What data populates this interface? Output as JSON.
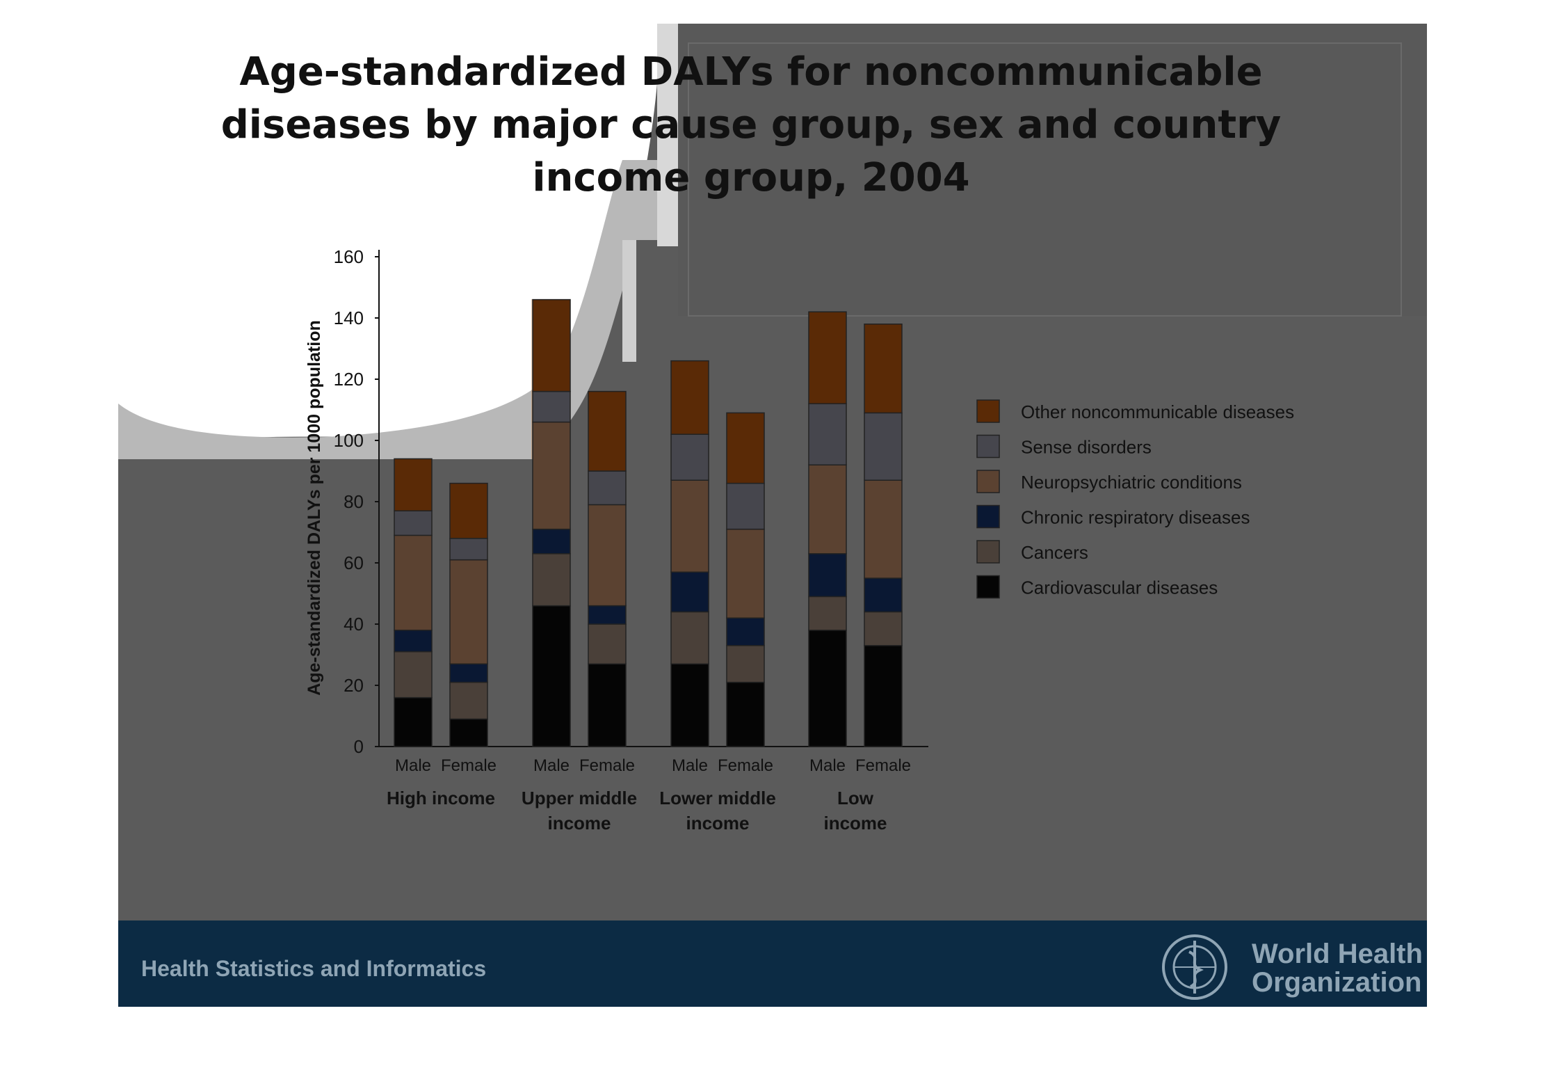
{
  "slide": {
    "title_lines": [
      "Age-standardized DALYs for noncommunicable",
      "diseases by major cause group,  sex and country",
      "income group, 2004"
    ],
    "footer_left": "Health Statistics and Informatics",
    "logo_lines": [
      "World Health",
      "Organization"
    ],
    "colors": {
      "background": "#5b5b5b",
      "footer": "#0c2b44",
      "footer_text": "#8fa5b5"
    }
  },
  "chart_data": {
    "type": "bar",
    "stacked": true,
    "ylabel": "Age-standardized DALYs per 1000 population",
    "ylim": [
      0,
      160
    ],
    "yticks": [
      0,
      20,
      40,
      60,
      80,
      100,
      120,
      140,
      160
    ],
    "groups": [
      {
        "label": [
          "High income"
        ],
        "bars": [
          "Male",
          "Female"
        ]
      },
      {
        "label": [
          "Upper middle",
          "income"
        ],
        "bars": [
          "Male",
          "Female"
        ]
      },
      {
        "label": [
          "Lower middle",
          "income"
        ],
        "bars": [
          "Male",
          "Female"
        ]
      },
      {
        "label": [
          "Low",
          "income"
        ],
        "bars": [
          "Male",
          "Female"
        ]
      }
    ],
    "series": [
      {
        "name": "Cardiovascular diseases",
        "color": "#050505",
        "values": [
          16,
          9,
          46,
          27,
          27,
          21,
          38,
          33
        ]
      },
      {
        "name": "Cancers",
        "color": "#4a4039",
        "values": [
          15,
          12,
          17,
          13,
          17,
          12,
          11,
          11
        ]
      },
      {
        "name": "Chronic respiratory diseases",
        "color": "#0a1833",
        "values": [
          7,
          6,
          8,
          6,
          13,
          9,
          14,
          11
        ]
      },
      {
        "name": "Neuropsychiatric conditions",
        "color": "#5b4231",
        "values": [
          31,
          34,
          35,
          33,
          30,
          29,
          29,
          32
        ]
      },
      {
        "name": "Sense disorders",
        "color": "#46464d",
        "values": [
          8,
          7,
          10,
          11,
          15,
          15,
          20,
          22
        ]
      },
      {
        "name": "Other noncommunicable diseases",
        "color": "#5a2a06",
        "values": [
          17,
          18,
          30,
          26,
          24,
          23,
          30,
          29
        ]
      }
    ],
    "legend_order": [
      "Other noncommunicable diseases",
      "Sense disorders",
      "Neuropsychiatric conditions",
      "Chronic respiratory diseases",
      "Cancers",
      "Cardiovascular diseases"
    ],
    "legend_position": "right"
  }
}
